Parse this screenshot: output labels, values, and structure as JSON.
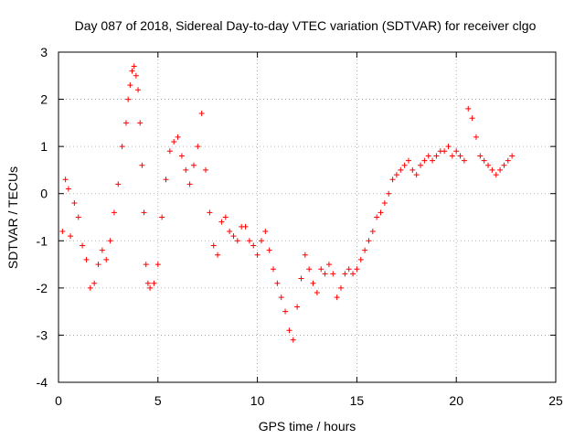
{
  "chart_data": {
    "type": "scatter",
    "title": "Day 087 of 2018, Sidereal Day-to-day VTEC variation (SDTVAR) for receiver clgo",
    "xlabel": "GPS time / hours",
    "ylabel": "SDTVAR / TECUs",
    "xlim": [
      0,
      25
    ],
    "ylim": [
      -4,
      3
    ],
    "xticks": [
      0,
      5,
      10,
      15,
      20,
      25
    ],
    "yticks": [
      -4,
      -3,
      -2,
      -1,
      0,
      1,
      2,
      3
    ],
    "grid": true,
    "marker": "+",
    "series": [
      {
        "name": "SDTVAR",
        "color": "#ff0000",
        "x": [
          0.2,
          0.35,
          0.5,
          0.6,
          0.8,
          1.0,
          1.2,
          1.4,
          1.6,
          1.8,
          2.0,
          2.2,
          2.4,
          2.6,
          2.8,
          3.0,
          3.2,
          3.4,
          3.5,
          3.6,
          3.7,
          3.8,
          3.9,
          4.0,
          4.1,
          4.2,
          4.3,
          4.4,
          4.5,
          4.6,
          4.8,
          5.0,
          5.2,
          5.4,
          5.6,
          5.8,
          6.0,
          6.2,
          6.4,
          6.6,
          6.8,
          7.0,
          7.2,
          7.4,
          7.6,
          7.8,
          8.0,
          8.2,
          8.4,
          8.6,
          8.8,
          9.0,
          9.2,
          9.4,
          9.6,
          9.8,
          10.0,
          10.2,
          10.4,
          10.6,
          10.8,
          11.0,
          11.2,
          11.4,
          11.6,
          11.8,
          12.0,
          12.2,
          12.4,
          12.6,
          12.8,
          13.0,
          13.2,
          13.4,
          13.6,
          13.8,
          14.0,
          14.2,
          14.4,
          14.6,
          14.8,
          15.0,
          15.2,
          15.4,
          15.6,
          15.8,
          16.0,
          16.2,
          16.4,
          16.6,
          16.8,
          17.0,
          17.2,
          17.4,
          17.6,
          17.8,
          18.0,
          18.2,
          18.4,
          18.6,
          18.8,
          19.0,
          19.2,
          19.4,
          19.6,
          19.8,
          20.0,
          20.2,
          20.4,
          20.6,
          20.8,
          21.0,
          21.2,
          21.4,
          21.6,
          21.8,
          22.0,
          22.2,
          22.4,
          22.6,
          22.8
        ],
        "y": [
          -0.8,
          0.3,
          0.1,
          -0.9,
          -0.2,
          -0.5,
          -1.1,
          -1.4,
          -2.0,
          -1.9,
          -1.5,
          -1.2,
          -1.4,
          -1.0,
          -0.4,
          0.2,
          1.0,
          1.5,
          2.0,
          2.3,
          2.6,
          2.7,
          2.5,
          2.2,
          1.5,
          0.6,
          -0.4,
          -1.5,
          -1.9,
          -2.0,
          -1.9,
          -1.5,
          -0.5,
          0.3,
          0.9,
          1.1,
          1.2,
          0.8,
          0.5,
          0.2,
          0.6,
          1.0,
          1.7,
          0.5,
          -0.4,
          -1.1,
          -1.3,
          -0.6,
          -0.5,
          -0.8,
          -0.9,
          -1.0,
          -0.7,
          -0.7,
          -1.0,
          -1.1,
          -1.3,
          -1.0,
          -0.8,
          -1.2,
          -1.6,
          -1.9,
          -2.2,
          -2.5,
          -2.9,
          -3.1,
          -2.4,
          -1.8,
          -1.3,
          -1.6,
          -1.9,
          -2.1,
          -1.6,
          -1.7,
          -1.5,
          -1.7,
          -2.2,
          -2.0,
          -1.7,
          -1.6,
          -1.7,
          -1.6,
          -1.4,
          -1.2,
          -1.0,
          -0.8,
          -0.5,
          -0.4,
          -0.2,
          0.0,
          0.3,
          0.4,
          0.5,
          0.6,
          0.7,
          0.5,
          0.4,
          0.6,
          0.7,
          0.8,
          0.7,
          0.8,
          0.9,
          0.9,
          1.0,
          0.8,
          0.9,
          0.8,
          0.7,
          1.8,
          1.6,
          1.2,
          0.8,
          0.7,
          0.6,
          0.5,
          0.4,
          0.5,
          0.6,
          0.7,
          0.8
        ]
      }
    ]
  }
}
